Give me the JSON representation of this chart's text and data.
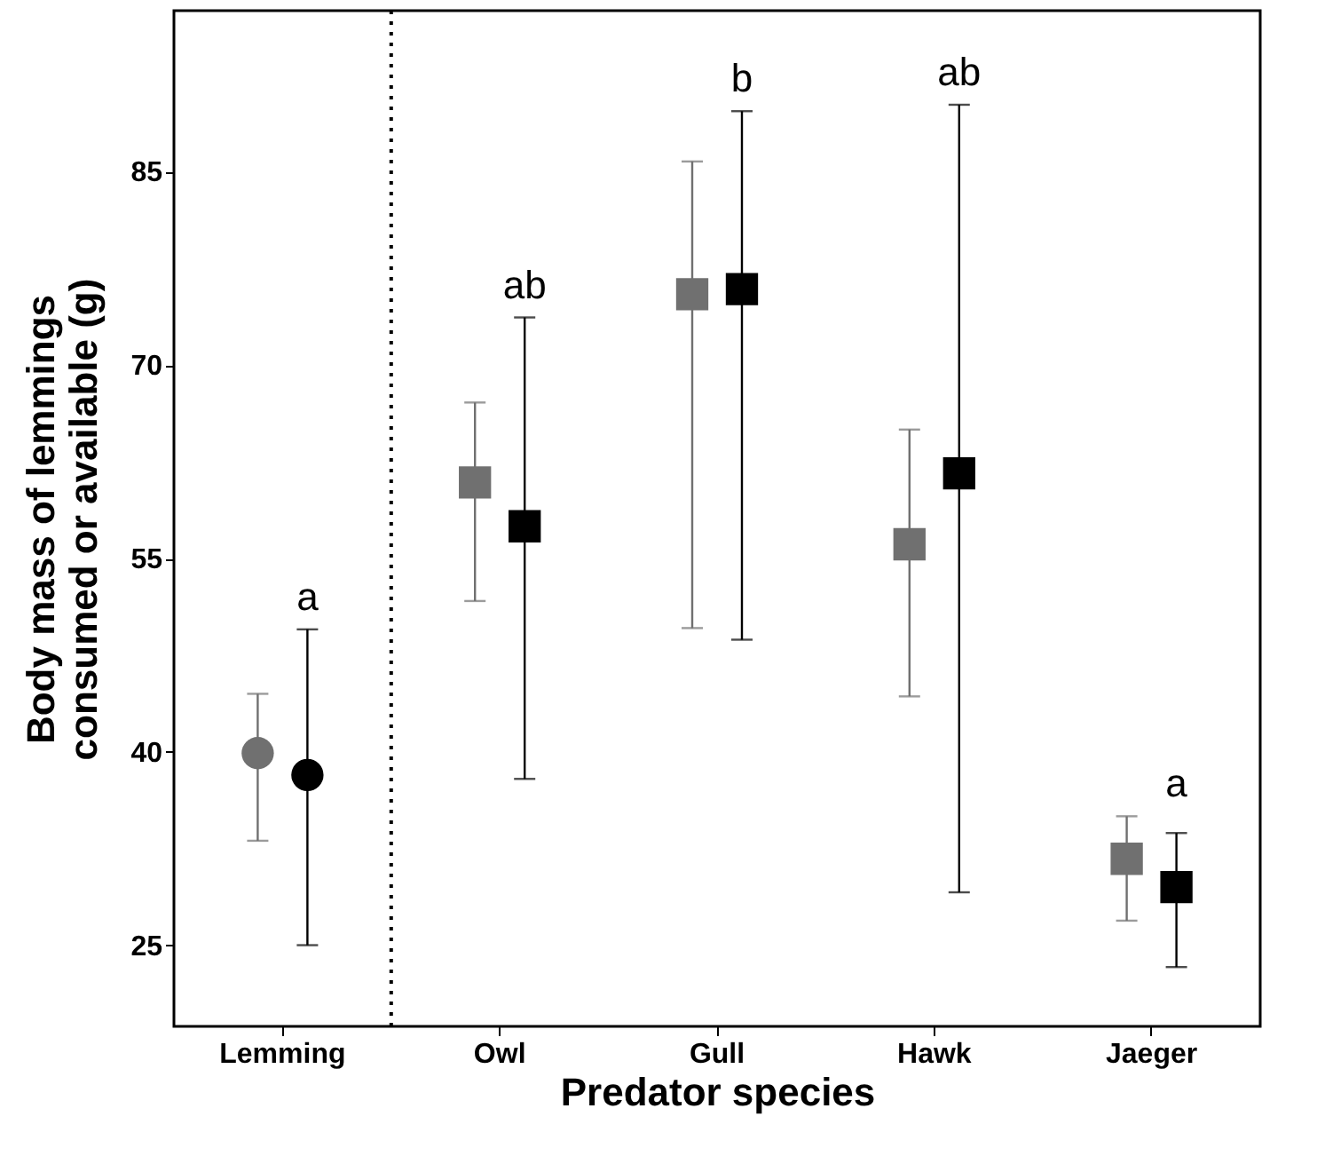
{
  "chart_data": {
    "type": "scatter",
    "xlabel": "Predator species",
    "ylabel": "Body mass of lemmings\nconsumed or available (g)",
    "categories": [
      "Lemming",
      "Owl",
      "Gull",
      "Hawk",
      "Jaeger"
    ],
    "series": [
      {
        "color": "#707070",
        "marker": "circle",
        "x": [
          "Lemming"
        ],
        "values": [
          39.9
        ],
        "errors": [
          [
            33.1,
            44.5
          ]
        ]
      },
      {
        "color": "#000000",
        "marker": "circle",
        "x": [
          "Lemming"
        ],
        "values": [
          38.2
        ],
        "errors": [
          [
            25.0,
            49.5
          ]
        ]
      },
      {
        "color": "#707070",
        "marker": "square",
        "x": [
          "Owl",
          "Gull",
          "Hawk",
          "Jaeger"
        ],
        "values": [
          60.9,
          75.5,
          56.1,
          31.7
        ],
        "errors": [
          [
            51.7,
            67.1
          ],
          [
            49.6,
            85.8
          ],
          [
            44.3,
            65.0
          ],
          [
            26.9,
            35.0
          ]
        ]
      },
      {
        "color": "#000000",
        "marker": "square",
        "x": [
          "Owl",
          "Gull",
          "Hawk",
          "Jaeger"
        ],
        "values": [
          57.5,
          75.9,
          61.6,
          29.5
        ],
        "errors": [
          [
            37.9,
            73.7
          ],
          [
            48.7,
            89.7
          ],
          [
            29.1,
            90.2
          ],
          [
            23.3,
            33.7
          ]
        ]
      }
    ],
    "annotations": [
      "a",
      "ab",
      "b",
      "ab",
      "a"
    ],
    "ylim": [
      18.7,
      97.5
    ],
    "yticks": [
      25,
      40,
      55,
      70,
      85
    ],
    "grid": false
  }
}
